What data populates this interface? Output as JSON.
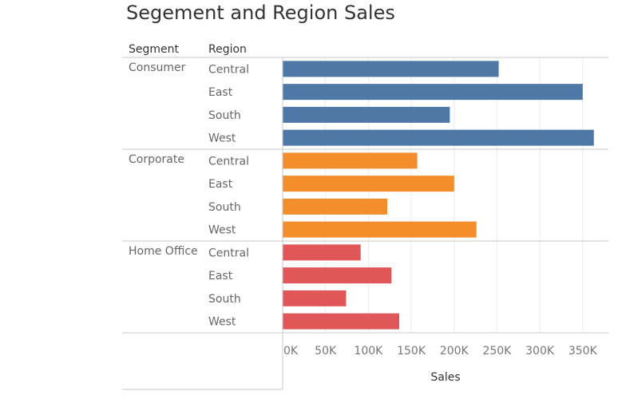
{
  "chart_data": {
    "type": "bar",
    "orientation": "horizontal",
    "title": "Segement and Region Sales",
    "row_headers": [
      "Segment",
      "Region"
    ],
    "xlabel": "Sales",
    "xlim": [
      0,
      380000
    ],
    "xticks": [
      0,
      50000,
      100000,
      150000,
      200000,
      250000,
      300000,
      350000
    ],
    "xtick_labels": [
      "0K",
      "50K",
      "100K",
      "150K",
      "200K",
      "250K",
      "300K",
      "350K"
    ],
    "gridlines": true,
    "series": [
      {
        "segment": "Consumer",
        "color": "#4e79a7",
        "regions": [
          "Central",
          "East",
          "South",
          "West"
        ],
        "values": [
          252000,
          350000,
          195000,
          363000
        ]
      },
      {
        "segment": "Corporate",
        "color": "#f28e2b",
        "regions": [
          "Central",
          "East",
          "South",
          "West"
        ],
        "values": [
          157000,
          200000,
          122000,
          226000
        ]
      },
      {
        "segment": "Home Office",
        "color": "#e15759",
        "regions": [
          "Central",
          "East",
          "South",
          "West"
        ],
        "values": [
          91000,
          127000,
          74000,
          136000
        ]
      }
    ]
  }
}
